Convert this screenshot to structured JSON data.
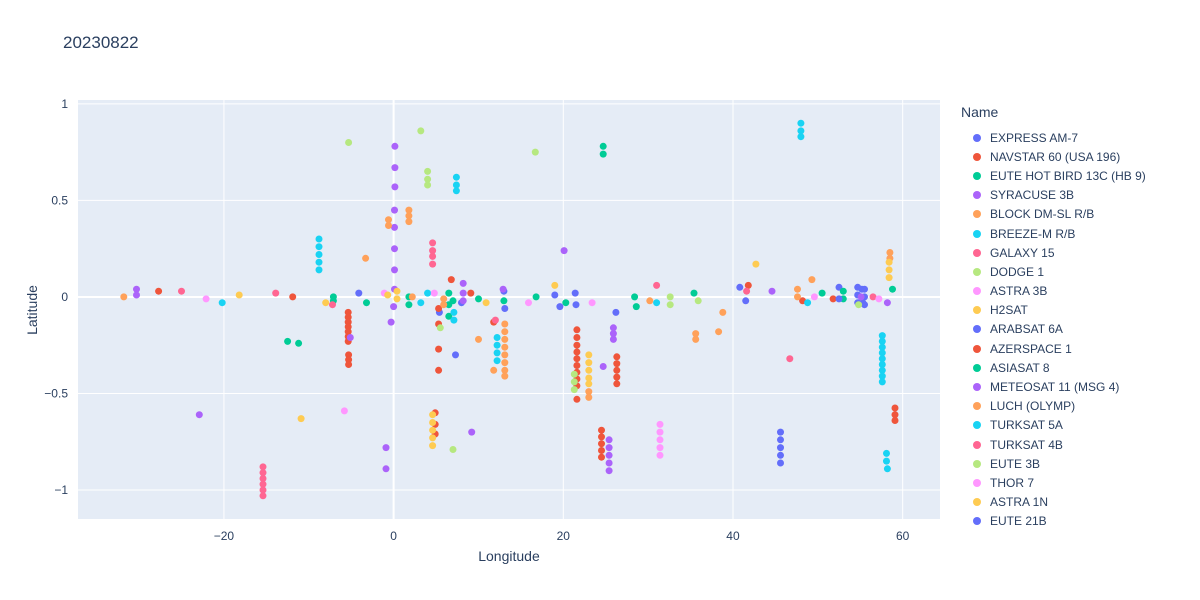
{
  "title": "20230822",
  "colors": {
    "page_bg": "#ffffff",
    "plot_bg": "#E5ECF6",
    "grid": "#ffffff",
    "text": "#2a3f5f"
  },
  "chart_data": {
    "type": "scatter",
    "title": "20230822",
    "xlabel": "Longitude",
    "ylabel": "Latitude",
    "legend_title": "Name",
    "legend_position": "right",
    "grid": true,
    "marker_size_px": 7,
    "xlim": [
      -37.2,
      64.4
    ],
    "ylim": [
      -1.15,
      1.02
    ],
    "x_ticks": {
      "values": [
        -20,
        0,
        20,
        40,
        60
      ],
      "labels": [
        "−20",
        "0",
        "20",
        "40",
        "60"
      ]
    },
    "y_ticks": {
      "values": [
        1,
        0.5,
        0,
        -0.5,
        -1
      ],
      "labels": [
        "1",
        "0.5",
        "0",
        "−0.5",
        "−1"
      ]
    },
    "series": [
      {
        "name": "EXPRESS AM-7",
        "color": "#636EFA",
        "points": [
          [
            -4.1,
            0.02
          ],
          [
            5.4,
            -0.08
          ],
          [
            7.3,
            -0.3
          ],
          [
            8.0,
            -0.03
          ],
          [
            13.0,
            0.03
          ],
          [
            13.1,
            -0.06
          ],
          [
            19.6,
            -0.05
          ],
          [
            21.4,
            0.02
          ],
          [
            26.2,
            -0.08
          ],
          [
            40.8,
            0.05
          ],
          [
            41.5,
            -0.02
          ],
          [
            52.5,
            0.05
          ],
          [
            55.2,
            0.04
          ],
          [
            55.3,
            -0.03
          ]
        ]
      },
      {
        "name": "NAVSTAR 60 (USA 196)",
        "color": "#EF553B",
        "points": [
          [
            -27.7,
            0.03
          ],
          [
            -11.9,
            0.0
          ],
          [
            -5.35,
            -0.08
          ],
          [
            -5.35,
            -0.105
          ],
          [
            -5.35,
            -0.13
          ],
          [
            -5.35,
            -0.155
          ],
          [
            -5.35,
            -0.18
          ],
          [
            -5.35,
            -0.205
          ],
          [
            -5.35,
            -0.23
          ],
          [
            -5.3,
            -0.3
          ],
          [
            -5.3,
            -0.325
          ],
          [
            -5.3,
            -0.35
          ],
          [
            5.3,
            -0.06
          ],
          [
            5.3,
            -0.14
          ],
          [
            5.3,
            -0.27
          ],
          [
            5.3,
            -0.38
          ],
          [
            4.9,
            -0.6
          ],
          [
            4.9,
            -0.66
          ],
          [
            4.9,
            -0.71
          ],
          [
            51.8,
            -0.01
          ]
        ]
      },
      {
        "name": "EUTE HOT BIRD 13C (HB 9)",
        "color": "#00CC96",
        "points": [
          [
            -12.5,
            -0.23
          ],
          [
            -11.2,
            -0.24
          ],
          [
            -7.1,
            0.0
          ],
          [
            -7.1,
            -0.02
          ],
          [
            -3.2,
            -0.03
          ],
          [
            1.8,
            0.0
          ],
          [
            1.8,
            -0.04
          ],
          [
            6.5,
            0.02
          ],
          [
            6.5,
            -0.04
          ],
          [
            6.5,
            -0.1
          ],
          [
            10.0,
            -0.01
          ],
          [
            13.0,
            -0.02
          ],
          [
            16.8,
            0.0
          ],
          [
            28.4,
            0.0
          ],
          [
            28.6,
            -0.05
          ],
          [
            53.0,
            -0.01
          ]
        ]
      },
      {
        "name": "SYRACUSE 3B",
        "color": "#AB63FA",
        "points": [
          [
            0.15,
            0.78
          ],
          [
            0.15,
            0.67
          ],
          [
            0.15,
            0.57
          ],
          [
            0.1,
            0.45
          ],
          [
            0.1,
            0.36
          ],
          [
            0.1,
            0.25
          ],
          [
            0.1,
            0.14
          ],
          [
            0.1,
            0.04
          ],
          [
            0.0,
            -0.05
          ],
          [
            -0.3,
            -0.13
          ],
          [
            -0.9,
            -0.78
          ],
          [
            -0.9,
            -0.89
          ]
        ]
      },
      {
        "name": "BLOCK DM-SL R/B",
        "color": "#FFA15A",
        "points": [
          [
            -0.6,
            0.4
          ],
          [
            -0.6,
            0.37
          ],
          [
            1.8,
            0.45
          ],
          [
            1.8,
            0.42
          ],
          [
            1.8,
            0.39
          ],
          [
            13.1,
            -0.14
          ],
          [
            13.1,
            -0.18
          ],
          [
            13.1,
            -0.22
          ],
          [
            13.1,
            -0.26
          ],
          [
            13.1,
            -0.3
          ],
          [
            13.1,
            -0.34
          ],
          [
            13.1,
            -0.38
          ],
          [
            13.1,
            -0.41
          ],
          [
            23.0,
            -0.49
          ],
          [
            23.0,
            -0.52
          ],
          [
            35.6,
            -0.19
          ],
          [
            35.6,
            -0.22
          ],
          [
            58.5,
            0.2
          ],
          [
            58.5,
            0.23
          ]
        ]
      },
      {
        "name": "BREEZE-M R/B",
        "color": "#19D3F3",
        "points": [
          [
            -20.2,
            -0.03
          ],
          [
            -8.8,
            0.3
          ],
          [
            -8.8,
            0.26
          ],
          [
            -8.8,
            0.22
          ],
          [
            -8.8,
            0.18
          ],
          [
            -8.8,
            0.14
          ],
          [
            3.2,
            -0.03
          ],
          [
            4.0,
            0.02
          ],
          [
            7.4,
            0.62
          ],
          [
            7.4,
            0.58
          ],
          [
            7.4,
            0.55
          ],
          [
            7.1,
            -0.08
          ],
          [
            7.1,
            -0.12
          ],
          [
            12.2,
            -0.21
          ],
          [
            12.2,
            -0.25
          ],
          [
            12.2,
            -0.29
          ],
          [
            12.2,
            -0.33
          ]
        ]
      },
      {
        "name": "GALAXY 15",
        "color": "#FF6692",
        "points": [
          [
            -25.0,
            0.03
          ],
          [
            -13.9,
            0.02
          ],
          [
            4.6,
            0.28
          ],
          [
            4.6,
            0.24
          ],
          [
            4.6,
            0.21
          ],
          [
            4.6,
            0.17
          ],
          [
            -15.4,
            -0.88
          ],
          [
            -15.4,
            -0.91
          ],
          [
            -15.4,
            -0.94
          ],
          [
            -15.4,
            -0.97
          ],
          [
            -15.4,
            -1.0
          ],
          [
            -15.4,
            -1.03
          ]
        ]
      },
      {
        "name": "DODGE 1",
        "color": "#B6E880",
        "points": [
          [
            -5.3,
            0.8
          ],
          [
            3.2,
            0.86
          ],
          [
            16.7,
            0.75
          ],
          [
            35.9,
            -0.02
          ]
        ]
      },
      {
        "name": "ASTRA 3B",
        "color": "#FF97FF",
        "points": [
          [
            -22.1,
            -0.01
          ],
          [
            -5.8,
            -0.59
          ],
          [
            -1.1,
            0.02
          ],
          [
            4.8,
            0.02
          ],
          [
            15.9,
            -0.03
          ],
          [
            23.4,
            -0.03
          ]
        ]
      },
      {
        "name": "H2SAT",
        "color": "#FECB52",
        "points": [
          [
            -18.2,
            0.01
          ],
          [
            0.4,
            0.03
          ],
          [
            0.4,
            -0.01
          ],
          [
            10.9,
            -0.03
          ],
          [
            19.0,
            0.06
          ],
          [
            23.0,
            -0.3
          ],
          [
            23.0,
            -0.34
          ],
          [
            23.0,
            -0.38
          ],
          [
            23.0,
            -0.42
          ],
          [
            23.0,
            -0.45
          ],
          [
            42.7,
            0.17
          ]
        ]
      },
      {
        "name": "ARABSAT 6A",
        "color": "#636EFA",
        "points": [
          [
            19.0,
            0.01
          ],
          [
            54.7,
            0.05
          ],
          [
            54.7,
            0.01
          ],
          [
            54.7,
            -0.03
          ],
          [
            55.5,
            0.04
          ],
          [
            55.5,
            0.0
          ],
          [
            55.5,
            -0.04
          ],
          [
            52.5,
            -0.01
          ]
        ]
      },
      {
        "name": "AZERSPACE 1",
        "color": "#EF553B",
        "points": [
          [
            6.8,
            0.09
          ],
          [
            9.1,
            0.02
          ],
          [
            11.8,
            -0.13
          ],
          [
            21.6,
            -0.17
          ],
          [
            21.6,
            -0.21
          ],
          [
            21.6,
            -0.25
          ],
          [
            21.6,
            -0.285
          ],
          [
            21.6,
            -0.32
          ],
          [
            21.6,
            -0.355
          ],
          [
            21.6,
            -0.39
          ],
          [
            21.6,
            -0.425
          ],
          [
            21.6,
            -0.46
          ],
          [
            21.6,
            -0.53
          ],
          [
            26.3,
            -0.31
          ],
          [
            26.3,
            -0.345
          ],
          [
            26.3,
            -0.38
          ],
          [
            26.3,
            -0.415
          ],
          [
            26.3,
            -0.45
          ],
          [
            24.5,
            -0.69
          ],
          [
            24.5,
            -0.725
          ],
          [
            24.5,
            -0.76
          ],
          [
            24.5,
            -0.795
          ],
          [
            24.5,
            -0.83
          ],
          [
            41.8,
            0.06
          ],
          [
            48.2,
            -0.02
          ],
          [
            59.1,
            -0.575
          ],
          [
            59.1,
            -0.61
          ],
          [
            59.1,
            -0.64
          ]
        ]
      },
      {
        "name": "ASIASAT 8",
        "color": "#00CC96",
        "points": [
          [
            7.0,
            -0.02
          ],
          [
            20.3,
            -0.03
          ],
          [
            24.7,
            0.78
          ],
          [
            24.7,
            0.74
          ],
          [
            35.4,
            0.02
          ],
          [
            50.5,
            0.02
          ],
          [
            53.0,
            0.03
          ],
          [
            58.8,
            0.04
          ]
        ]
      },
      {
        "name": "METEOSAT 11 (MSG 4)",
        "color": "#AB63FA",
        "points": [
          [
            -30.3,
            0.04
          ],
          [
            -30.3,
            0.01
          ],
          [
            -22.9,
            -0.61
          ],
          [
            -5.1,
            -0.21
          ],
          [
            8.2,
            0.07
          ],
          [
            8.2,
            0.02
          ],
          [
            8.2,
            -0.02
          ],
          [
            9.2,
            -0.7
          ],
          [
            12.9,
            0.04
          ],
          [
            20.1,
            0.24
          ],
          [
            24.7,
            -0.36
          ],
          [
            25.9,
            -0.16
          ],
          [
            25.9,
            -0.19
          ],
          [
            25.9,
            -0.22
          ],
          [
            25.4,
            -0.74
          ],
          [
            25.4,
            -0.78
          ],
          [
            25.4,
            -0.82
          ],
          [
            25.4,
            -0.86
          ],
          [
            25.4,
            -0.9
          ],
          [
            44.6,
            0.03
          ],
          [
            55.1,
            0.0
          ],
          [
            58.2,
            -0.03
          ]
        ]
      },
      {
        "name": "LUCH (OLYMP)",
        "color": "#FFA15A",
        "points": [
          [
            -31.8,
            0.0
          ],
          [
            -3.3,
            0.2
          ],
          [
            2.2,
            0.0
          ],
          [
            5.9,
            -0.01
          ],
          [
            5.9,
            -0.04
          ],
          [
            10.0,
            -0.22
          ],
          [
            11.8,
            -0.38
          ],
          [
            30.2,
            -0.02
          ],
          [
            38.3,
            -0.18
          ],
          [
            38.8,
            -0.08
          ],
          [
            47.6,
            0.04
          ],
          [
            47.6,
            0.0
          ],
          [
            49.3,
            0.09
          ]
        ]
      },
      {
        "name": "TURKSAT 5A",
        "color": "#19D3F3",
        "points": [
          [
            31.0,
            -0.03
          ],
          [
            48.0,
            0.9
          ],
          [
            48.0,
            0.86
          ],
          [
            48.0,
            0.83
          ],
          [
            48.8,
            -0.03
          ],
          [
            57.6,
            -0.2
          ],
          [
            57.6,
            -0.23
          ],
          [
            57.6,
            -0.26
          ],
          [
            57.6,
            -0.29
          ],
          [
            57.6,
            -0.32
          ],
          [
            57.6,
            -0.35
          ],
          [
            57.6,
            -0.38
          ],
          [
            57.6,
            -0.41
          ],
          [
            57.6,
            -0.44
          ],
          [
            58.1,
            -0.81
          ],
          [
            58.1,
            -0.85
          ],
          [
            58.2,
            -0.89
          ]
        ]
      },
      {
        "name": "TURKSAT 4B",
        "color": "#FF6692",
        "points": [
          [
            -7.2,
            -0.04
          ],
          [
            12.0,
            -0.12
          ],
          [
            31.0,
            0.06
          ],
          [
            41.6,
            0.03
          ],
          [
            46.7,
            -0.32
          ],
          [
            56.5,
            0.0
          ]
        ]
      },
      {
        "name": "EUTE 3B",
        "color": "#B6E880",
        "points": [
          [
            4.0,
            0.65
          ],
          [
            4.0,
            0.61
          ],
          [
            4.0,
            0.58
          ],
          [
            5.5,
            -0.16
          ],
          [
            7.0,
            -0.79
          ],
          [
            21.3,
            -0.4
          ],
          [
            21.3,
            -0.44
          ],
          [
            21.3,
            -0.48
          ],
          [
            32.6,
            0.0
          ],
          [
            32.6,
            -0.04
          ],
          [
            54.8,
            -0.04
          ]
        ]
      },
      {
        "name": "THOR 7",
        "color": "#FF97FF",
        "points": [
          [
            31.4,
            -0.66
          ],
          [
            31.4,
            -0.7
          ],
          [
            31.4,
            -0.74
          ],
          [
            31.4,
            -0.78
          ],
          [
            31.4,
            -0.82
          ],
          [
            49.6,
            0.0
          ],
          [
            57.2,
            -0.01
          ]
        ]
      },
      {
        "name": "ASTRA 1N",
        "color": "#FECB52",
        "points": [
          [
            -10.9,
            -0.63
          ],
          [
            -8.0,
            -0.03
          ],
          [
            -0.7,
            0.01
          ],
          [
            4.6,
            -0.61
          ],
          [
            4.6,
            -0.65
          ],
          [
            4.6,
            -0.69
          ],
          [
            4.6,
            -0.73
          ],
          [
            4.6,
            -0.77
          ],
          [
            58.4,
            0.1
          ],
          [
            58.4,
            0.14
          ],
          [
            58.4,
            0.18
          ]
        ]
      },
      {
        "name": "EUTE 21B",
        "color": "#636EFA",
        "points": [
          [
            21.5,
            -0.04
          ],
          [
            45.6,
            -0.7
          ],
          [
            45.6,
            -0.74
          ],
          [
            45.6,
            -0.78
          ],
          [
            45.6,
            -0.82
          ],
          [
            45.6,
            -0.86
          ]
        ]
      }
    ]
  }
}
